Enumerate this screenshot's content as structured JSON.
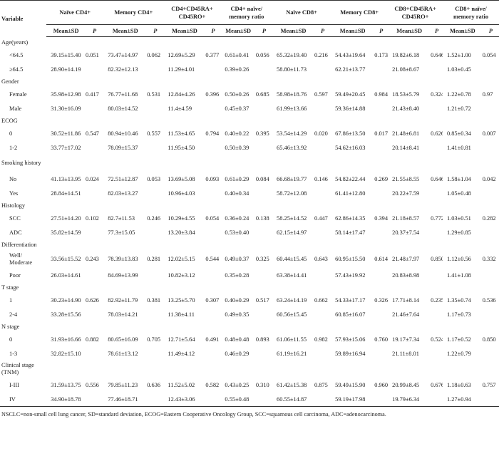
{
  "table": {
    "variable_header": "Variable",
    "groups": [
      {
        "label": "Naïve CD4+"
      },
      {
        "label": "Memory CD4+"
      },
      {
        "label": "CD4+CD45RA+ CD45RO+"
      },
      {
        "label": "CD4+ naïve/ memory ratio"
      },
      {
        "label": "Naïve CD8+"
      },
      {
        "label": "Memory CD8+"
      },
      {
        "label": "CD8+CD45RA+ CD45RO+"
      },
      {
        "label": "CD8+ naïve/ memory ratio"
      }
    ],
    "sub_mean": "Mean±SD",
    "sub_p": "P",
    "sections": [
      {
        "title": "Age(years)",
        "rows": [
          {
            "label": "<64.5",
            "cells": [
              "39.15±15.40",
              "0.051",
              "73.47±14.97",
              "0.062",
              "12.69±5.29",
              "0.377",
              "0.61±0.41",
              "0.056",
              "65.32±19.40",
              "0.216",
              "54.43±19.64",
              "0.173",
              "19.82±6.18",
              "0.646",
              "1.52±1.00",
              "0.054"
            ]
          },
          {
            "label": "≥64.5",
            "cells": [
              "28.90±14.19",
              "",
              "82.32±12.13",
              "",
              "11.29±4.01",
              "",
              "0.39±0.26",
              "",
              "58.80±11.73",
              "",
              "62.21±13.77",
              "",
              "21.08±8.67",
              "",
              "1.03±0.45",
              ""
            ]
          }
        ]
      },
      {
        "title": "Gender",
        "rows": [
          {
            "label": "Female",
            "cells": [
              "35.98±12.98",
              "0.417",
              "76.77±11.68",
              "0.531",
              "12.84±4.26",
              "0.396",
              "0.50±0.26",
              "0.685",
              "58.98±18.76",
              "0.597",
              "59.49±20.45",
              "0.984",
              "18.53±5.79",
              "0.324",
              "1.22±0.78",
              "0.97"
            ]
          },
          {
            "label": "Male",
            "cells": [
              "31.30±16.09",
              "",
              "80.03±14.52",
              "",
              "11.4±4.59",
              "",
              "0.45±0.37",
              "",
              "61.99±13.66",
              "",
              "59.36±14.88",
              "",
              "21.43±8.40",
              "",
              "1.21±0.72",
              ""
            ]
          }
        ]
      },
      {
        "title": "ECOG",
        "rows": [
          {
            "label": "0",
            "cells": [
              "30.52±11.86",
              "0.547",
              "80.94±10.46",
              "0.557",
              "11.53±4.65",
              "0.794",
              "0.40±0.22",
              "0.395",
              "53.54±14.29",
              "0.020",
              "67.86±13.50",
              "0.017",
              "21.48±6.81",
              "0.626",
              "0.85±0.34",
              "0.007"
            ]
          },
          {
            "label": "1-2",
            "cells": [
              "33.77±17.02",
              "",
              "78.09±15.37",
              "",
              "11.95±4.50",
              "",
              "0.50±0.39",
              "",
              "65.46±13.92",
              "",
              "54.62±16.03",
              "",
              "20.14±8.41",
              "",
              "1.41±0.81",
              ""
            ]
          }
        ]
      },
      {
        "title": "Smoking history",
        "two": true,
        "rows": [
          {
            "label": "No",
            "cells": [
              "41.13±13.95",
              "0.024",
              "72.51±12.87",
              "0.053",
              "13.69±5.08",
              "0.093",
              "0.61±0.29",
              "0.084",
              "66.68±19.77",
              "0.146",
              "54.82±22.44",
              "0.269",
              "21.55±8.55",
              "0.646",
              "1.58±1.04",
              "0.042"
            ]
          },
          {
            "label": "Yes",
            "cells": [
              "28.84±14.51",
              "",
              "82.03±13.27",
              "",
              "10.96±4.03",
              "",
              "0.40±0.34",
              "",
              "58.72±12.08",
              "",
              "61.41±12.80",
              "",
              "20.22±7.59",
              "",
              "1.05±0.48",
              ""
            ]
          }
        ]
      },
      {
        "title": "Histology",
        "rows": [
          {
            "label": "SCC",
            "cells": [
              "27.51±14.20",
              "0.102",
              "82.7±11.53",
              "0.246",
              "10.29±4.55",
              "0.054",
              "0.36±0.24",
              "0.138",
              "58.25±14.52",
              "0.447",
              "62.86±14.35",
              "0.394",
              "21.18±8.57",
              "0.772",
              "1.03±0.51",
              "0.282"
            ]
          },
          {
            "label": "ADC",
            "cells": [
              "35.82±14.59",
              "",
              "77.3±15.05",
              "",
              "13.20±3.84",
              "",
              "0.53±0.40",
              "",
              "62.15±14.97",
              "",
              "58.14±17.47",
              "",
              "20.37±7.54",
              "",
              "1.29±0.85",
              ""
            ]
          }
        ]
      },
      {
        "title": "Differentiation",
        "rows": [
          {
            "label": "Well/ Moderate",
            "two": true,
            "cells": [
              "33.56±15.52",
              "0.243",
              "78.39±13.83",
              "0.281",
              "12.02±5.15",
              "0.544",
              "0.49±0.37",
              "0.325",
              "60.44±15.45",
              "0.643",
              "60.95±15.50",
              "0.614",
              "21.48±7.97",
              "0.850",
              "1.12±0.56",
              "0.332"
            ]
          },
          {
            "label": "Poor",
            "cells": [
              "26.03±14.61",
              "",
              "84.69±13.99",
              "",
              "10.82±3.12",
              "",
              "0.35±0.28",
              "",
              "63.38±14.41",
              "",
              "57.43±19.92",
              "",
              "20.83±8.98",
              "",
              "1.41±1.08",
              ""
            ]
          }
        ]
      },
      {
        "title": "T stage",
        "rows": [
          {
            "label": "1",
            "cells": [
              "30.23±14.90",
              "0.626",
              "82.92±11.79",
              "0.381",
              "13.25±5.70",
              "0.307",
              "0.40±0.29",
              "0.517",
              "63.24±14.19",
              "0.662",
              "54.33±17.17",
              "0.326",
              "17.71±8.14",
              "0.235",
              "1.35±0.74",
              "0.536"
            ]
          },
          {
            "label": "2-4",
            "cells": [
              "33.28±15.56",
              "",
              "78.03±14.21",
              "",
              "11.38±4.11",
              "",
              "0.49±0.35",
              "",
              "60.56±15.45",
              "",
              "60.85±16.07",
              "",
              "21.46±7.64",
              "",
              "1.17±0.73",
              ""
            ]
          }
        ]
      },
      {
        "title": "N stage",
        "rows": [
          {
            "label": "0",
            "cells": [
              "31.93±16.66",
              "0.882",
              "80.65±16.09",
              "0.705",
              "12.71±5.64",
              "0.491",
              "0.48±0.48",
              "0.893",
              "61.06±11.55",
              "0.982",
              "57.93±15.06",
              "0.760",
              "19.17±7.34",
              "0.524",
              "1.17±0.52",
              "0.850"
            ]
          },
          {
            "label": "1-3",
            "cells": [
              "32.82±15.10",
              "",
              "78.61±13.12",
              "",
              "11.49±4.12",
              "",
              "0.46±0.29",
              "",
              "61.19±16.21",
              "",
              "59.89±16.94",
              "",
              "21.11±8.01",
              "",
              "1.22±0.79",
              ""
            ]
          }
        ]
      },
      {
        "title": "Clinical stage (TNM)",
        "two": true,
        "rows": [
          {
            "label": "I-III",
            "cells": [
              "31.59±13.75",
              "0.556",
              "79.85±11.23",
              "0.636",
              "11.52±5.02",
              "0.582",
              "0.43±0.25",
              "0.310",
              "61.42±15.38",
              "0.875",
              "59.49±15.90",
              "0.960",
              "20.99±8.45",
              "0.676",
              "1.18±0.63",
              "0.757"
            ]
          },
          {
            "label": "IV",
            "cells": [
              "34.90±18.78",
              "",
              "77.46±18.71",
              "",
              "12.43±3.06",
              "",
              "0.55±0.48",
              "",
              "60.55±14.87",
              "",
              "59.19±17.98",
              "",
              "19.79±6.34",
              "",
              "1.27±0.94",
              ""
            ]
          }
        ]
      }
    ],
    "footnote": "NSCLC=non-small cell lung cancer, SD=standard deviation, ECOG=Eastern Cooperative Oncology Group, SCC=squamous cell carcinoma, ADC=adenocarcinoma."
  }
}
